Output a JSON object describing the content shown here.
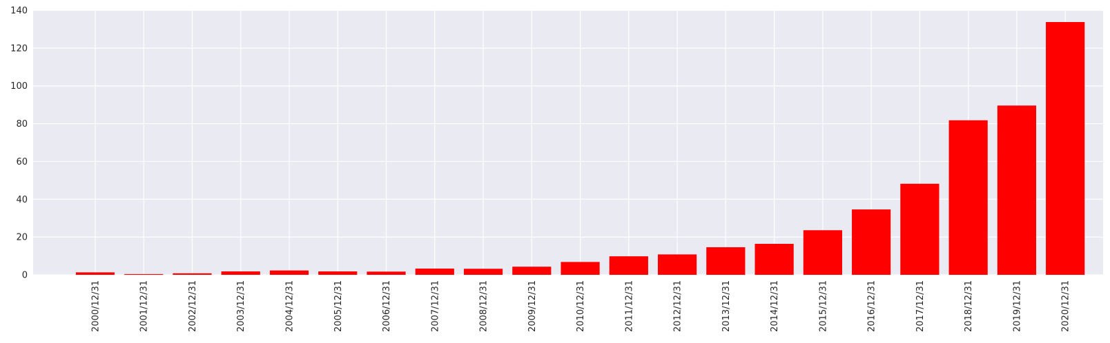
{
  "chart_data": {
    "type": "bar",
    "title": "",
    "xlabel": "",
    "ylabel": "",
    "categories": [
      "2000/12/31",
      "2001/12/31",
      "2002/12/31",
      "2003/12/31",
      "2004/12/31",
      "2005/12/31",
      "2006/12/31",
      "2007/12/31",
      "2008/12/31",
      "2009/12/31",
      "2010/12/31",
      "2011/12/31",
      "2012/12/31",
      "2013/12/31",
      "2014/12/31",
      "2015/12/31",
      "2016/12/31",
      "2017/12/31",
      "2018/12/31",
      "2019/12/31",
      "2020/12/31"
    ],
    "values": [
      1.3,
      0.4,
      0.8,
      1.8,
      2.3,
      1.8,
      1.7,
      3.3,
      3.2,
      4.3,
      6.8,
      9.8,
      10.8,
      14.6,
      16.4,
      23.6,
      34.6,
      48.2,
      81.8,
      89.6,
      133.8
    ],
    "ylim": [
      0,
      140
    ],
    "yticks": [
      0,
      20,
      40,
      60,
      80,
      100,
      120,
      140
    ],
    "grid": true,
    "bar_color": "#ff0000",
    "background_color": "#eaeaf2",
    "grid_color": "#ffffff"
  }
}
